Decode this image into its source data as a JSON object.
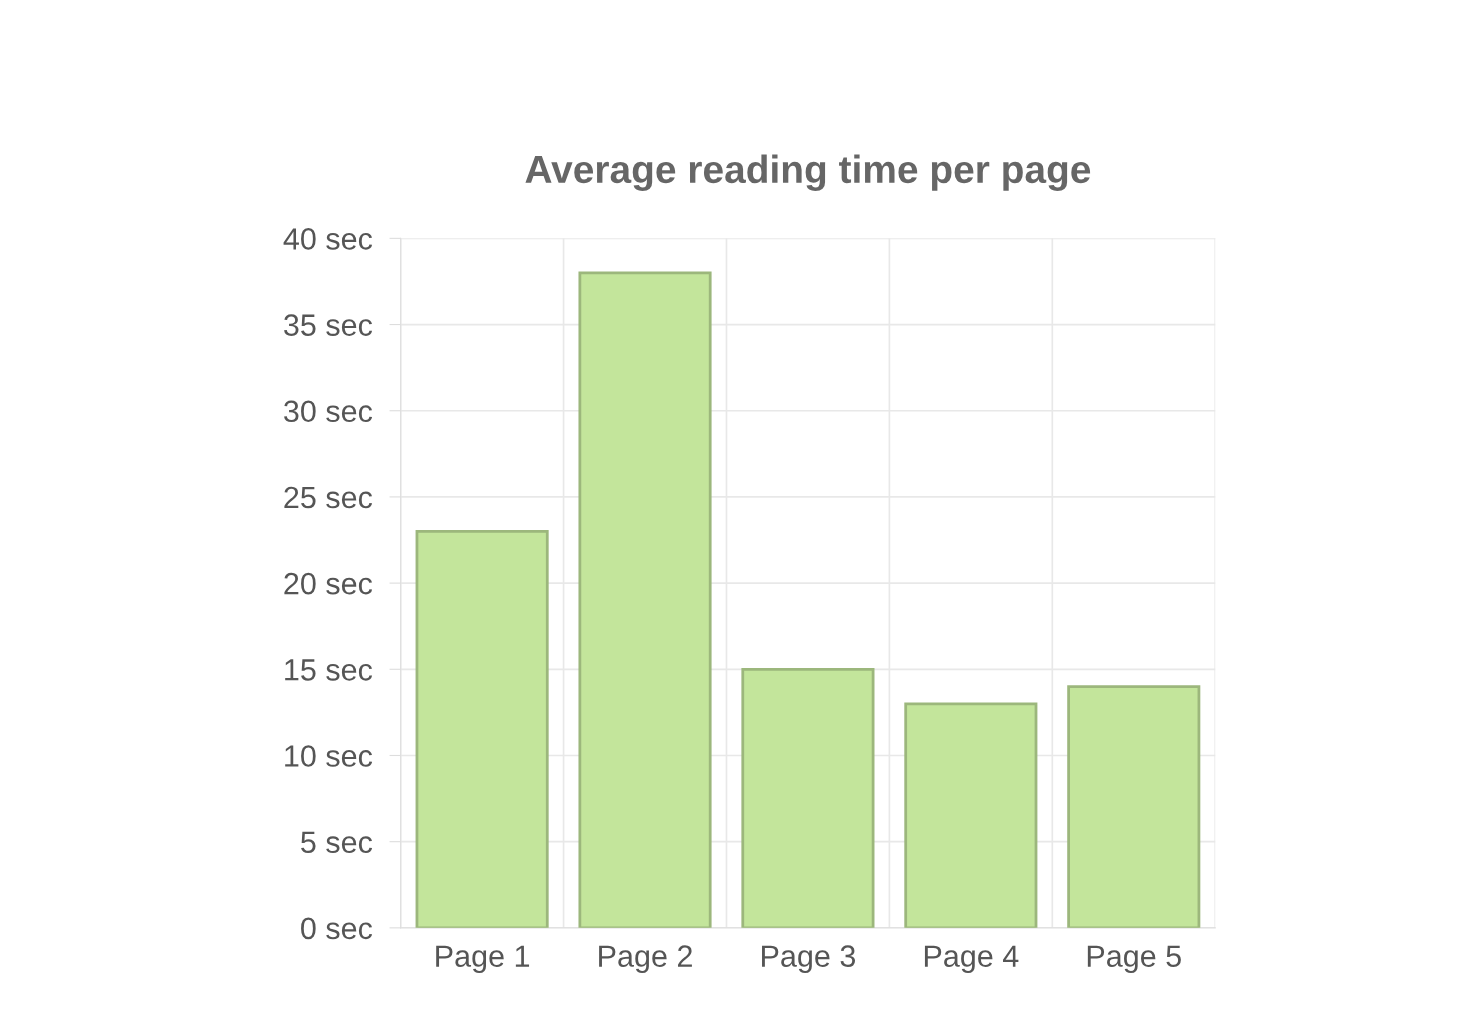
{
  "chart_data": {
    "type": "bar",
    "title": "Average reading time per page",
    "categories": [
      "Page 1",
      "Page 2",
      "Page 3",
      "Page 4",
      "Page 5"
    ],
    "values": [
      23,
      38,
      15,
      13,
      14
    ],
    "color": "#c3e59b",
    "ylim": [
      0,
      40
    ],
    "yticks": [
      {
        "value": 0,
        "label": "0 sec"
      },
      {
        "value": 5,
        "label": "5 sec"
      },
      {
        "value": 10,
        "label": "10 sec"
      },
      {
        "value": 15,
        "label": "15 sec"
      },
      {
        "value": 20,
        "label": "20 sec"
      },
      {
        "value": 25,
        "label": "25 sec"
      },
      {
        "value": 30,
        "label": "30 sec"
      },
      {
        "value": 35,
        "label": "35 sec"
      },
      {
        "value": 40,
        "label": "40 sec"
      }
    ],
    "grid": true
  }
}
